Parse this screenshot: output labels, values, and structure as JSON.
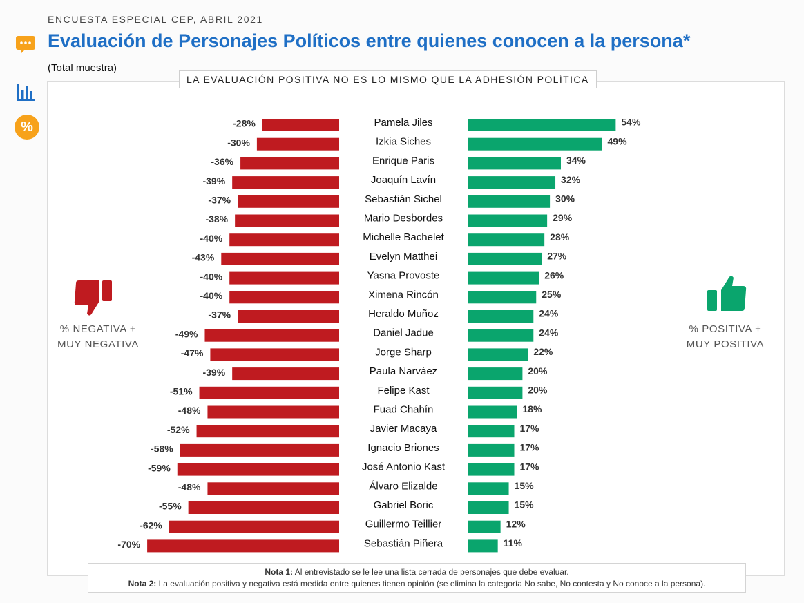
{
  "header": {
    "survey_label": "ENCUESTA ESPECIAL CEP, ABRIL 2021",
    "title": "Evaluación de Personajes Políticos entre quienes conocen a la persona*",
    "subtitle": "(Total muestra)"
  },
  "banner": "LA EVALUACIÓN POSITIVA NO ES LO MISMO QUE LA ADHESIÓN POLÍTICA",
  "icons": {
    "chat": "chat-bubble-icon",
    "bars": "bar-chart-icon",
    "percent": "%",
    "negative": "thumbs-down-icon",
    "positive": "thumbs-up-icon"
  },
  "legend": {
    "negative_line1": "% NEGATIVA +",
    "negative_line2": "MUY NEGATIVA",
    "positive_line1": "% POSITIVA +",
    "positive_line2": "MUY POSITIVA"
  },
  "colors": {
    "negative": "#bf1b20",
    "positive": "#0aa56d",
    "title": "#1f6fc5",
    "accent": "#f7a21b"
  },
  "chart_data": {
    "type": "bar",
    "orientation": "horizontal-diverging",
    "categories": [
      "Pamela Jiles",
      "Izkia Siches",
      "Enrique Paris",
      "Joaquín Lavín",
      "Sebastián Sichel",
      "Mario Desbordes",
      "Michelle Bachelet",
      "Evelyn Matthei",
      "Yasna Provoste",
      "Ximena Rincón",
      "Heraldo Muñoz",
      "Daniel Jadue",
      "Jorge Sharp",
      "Paula Narváez",
      "Felipe Kast",
      "Fuad Chahín",
      "Javier Macaya",
      "Ignacio Briones",
      "José Antonio Kast",
      "Álvaro Elizalde",
      "Gabriel Boric",
      "Guillermo Teillier",
      "Sebastián Piñera"
    ],
    "series": [
      {
        "name": "% NEGATIVA + MUY NEGATIVA",
        "values": [
          -28,
          -30,
          -36,
          -39,
          -37,
          -38,
          -40,
          -43,
          -40,
          -40,
          -37,
          -49,
          -47,
          -39,
          -51,
          -48,
          -52,
          -58,
          -59,
          -48,
          -55,
          -62,
          -70
        ]
      },
      {
        "name": "% POSITIVA + MUY POSITIVA",
        "values": [
          54,
          49,
          34,
          32,
          30,
          29,
          28,
          27,
          26,
          25,
          24,
          24,
          22,
          20,
          20,
          18,
          17,
          17,
          17,
          15,
          15,
          12,
          11
        ]
      }
    ],
    "value_suffix": "%"
  },
  "notes": {
    "note1_label": "Nota 1:",
    "note1_text": " Al entrevistado se le lee una lista cerrada de personajes que debe evaluar.",
    "note2_label": "Nota 2:",
    "note2_text": " La evaluación positiva y negativa está medida entre quienes tienen opinión (se elimina la categoría No sabe, No contesta y No conoce a la persona)."
  }
}
